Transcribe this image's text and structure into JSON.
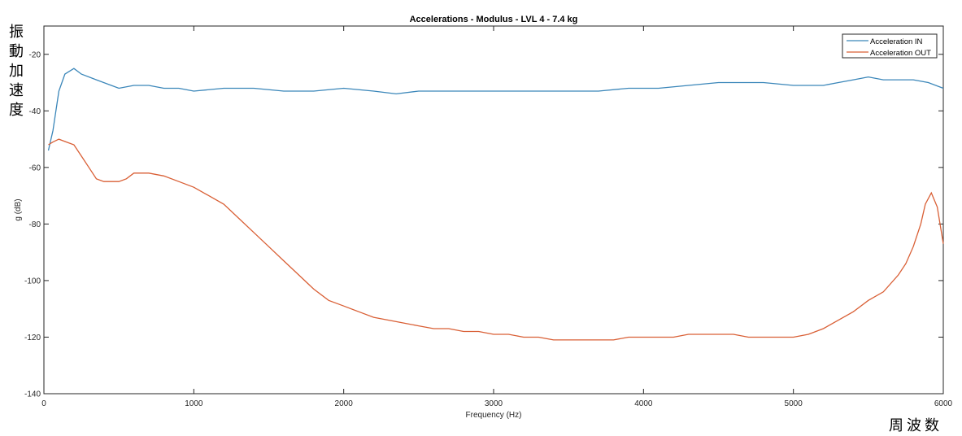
{
  "annotations": {
    "y_side_label_chars": [
      "振",
      "動",
      "加",
      "速",
      "度"
    ],
    "x_side_label": "周波数"
  },
  "colors": {
    "in": "#3a86b9",
    "out": "#d95f35",
    "axis": "#262626",
    "background": "#ffffff"
  },
  "chart_data": {
    "type": "line",
    "title": "Accelerations - Modulus - LVL 4 - 7.4 kg",
    "xlabel": "Frequency (Hz)",
    "ylabel": "g (dB)",
    "xlim": [
      0,
      6000
    ],
    "ylim": [
      -140,
      -10
    ],
    "xticks": [
      0,
      1000,
      2000,
      3000,
      4000,
      5000,
      6000
    ],
    "yticks": [
      -140,
      -120,
      -100,
      -80,
      -60,
      -40,
      -20
    ],
    "grid": false,
    "legend": "top-right",
    "series": [
      {
        "name": "Acceleration IN",
        "x": [
          30,
          60,
          100,
          140,
          200,
          250,
          350,
          450,
          500,
          600,
          700,
          800,
          900,
          1000,
          1200,
          1400,
          1600,
          1800,
          2000,
          2200,
          2350,
          2500,
          2700,
          2900,
          3100,
          3300,
          3500,
          3700,
          3900,
          4100,
          4300,
          4500,
          4600,
          4800,
          5000,
          5200,
          5300,
          5400,
          5500,
          5600,
          5700,
          5800,
          5900,
          6000
        ],
        "y": [
          -54,
          -47,
          -33,
          -27,
          -25,
          -27,
          -29,
          -31,
          -32,
          -31,
          -31,
          -32,
          -32,
          -33,
          -32,
          -32,
          -33,
          -33,
          -32,
          -33,
          -34,
          -33,
          -33,
          -33,
          -33,
          -33,
          -33,
          -33,
          -32,
          -32,
          -31,
          -30,
          -30,
          -30,
          -31,
          -31,
          -30,
          -29,
          -28,
          -29,
          -29,
          -29,
          -30,
          -32
        ]
      },
      {
        "name": "Acceleration OUT",
        "x": [
          30,
          60,
          100,
          150,
          200,
          250,
          300,
          350,
          400,
          500,
          550,
          600,
          700,
          800,
          900,
          1000,
          1100,
          1200,
          1300,
          1400,
          1500,
          1600,
          1700,
          1800,
          1900,
          2000,
          2100,
          2200,
          2300,
          2400,
          2500,
          2600,
          2700,
          2800,
          2900,
          3000,
          3100,
          3200,
          3300,
          3400,
          3500,
          3600,
          3700,
          3800,
          3900,
          4000,
          4100,
          4200,
          4300,
          4400,
          4500,
          4600,
          4700,
          4800,
          4900,
          5000,
          5100,
          5200,
          5300,
          5400,
          5500,
          5600,
          5700,
          5750,
          5800,
          5850,
          5880,
          5920,
          5960,
          6000
        ],
        "y": [
          -52,
          -51,
          -50,
          -51,
          -52,
          -56,
          -60,
          -64,
          -65,
          -65,
          -64,
          -62,
          -62,
          -63,
          -65,
          -67,
          -70,
          -73,
          -78,
          -83,
          -88,
          -93,
          -98,
          -103,
          -107,
          -109,
          -111,
          -113,
          -114,
          -115,
          -116,
          -117,
          -117,
          -118,
          -118,
          -119,
          -119,
          -120,
          -120,
          -121,
          -121,
          -121,
          -121,
          -121,
          -120,
          -120,
          -120,
          -120,
          -119,
          -119,
          -119,
          -119,
          -120,
          -120,
          -120,
          -120,
          -119,
          -117,
          -114,
          -111,
          -107,
          -104,
          -98,
          -94,
          -88,
          -80,
          -73,
          -69,
          -74,
          -87
        ]
      }
    ]
  }
}
